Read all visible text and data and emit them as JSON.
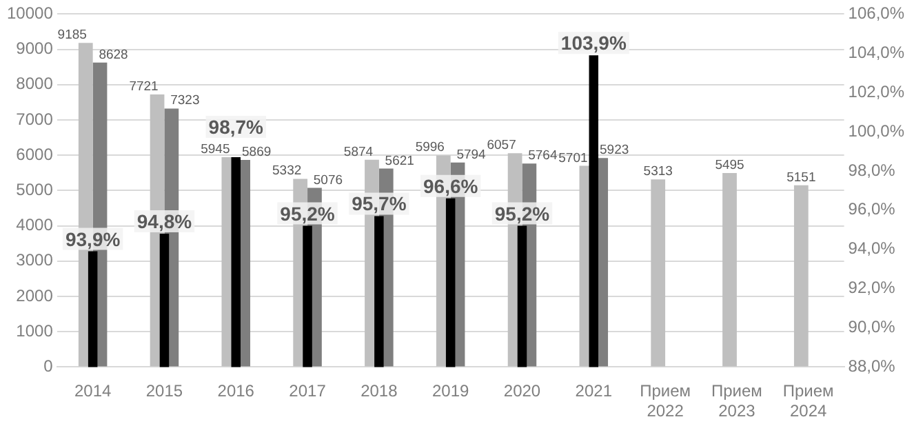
{
  "chart_data": {
    "type": "bar",
    "categories": [
      "2014",
      "2015",
      "2016",
      "2017",
      "2018",
      "2019",
      "2020",
      "2021",
      "Прием 2022",
      "Прием 2023",
      "Прием 2024"
    ],
    "series": [
      {
        "color": "#bfbfbf",
        "values": [
          9185,
          7721,
          5945,
          5332,
          5874,
          5996,
          6057,
          5701,
          5313,
          5495,
          5151
        ],
        "value_labels": [
          "9185",
          "7721",
          "5945",
          "5332",
          "5874",
          "5996",
          "6057",
          "5701",
          "5313",
          "5495",
          "5151"
        ]
      },
      {
        "color": "#7f7f7f",
        "values": [
          8628,
          7323,
          5869,
          5076,
          5621,
          5794,
          5764,
          5923,
          null,
          null,
          null
        ],
        "value_labels": [
          "8628",
          "7323",
          "5869",
          "5076",
          "5621",
          "5794",
          "5764",
          "5923",
          null,
          null,
          null
        ]
      },
      {
        "color": "#000000",
        "axis": "y2",
        "values": [
          93.9,
          94.8,
          98.7,
          95.2,
          95.7,
          96.6,
          95.2,
          103.9,
          null,
          null,
          null
        ],
        "value_labels": [
          "93,9%",
          "94,8%",
          "98,7%",
          "95,2%",
          "95,7%",
          "96,6%",
          "95,2%",
          "103,9%",
          null,
          null,
          null
        ]
      }
    ],
    "ylim": [
      0,
      10000
    ],
    "yticks": [
      0,
      1000,
      2000,
      3000,
      4000,
      5000,
      6000,
      7000,
      8000,
      9000,
      10000
    ],
    "y2lim": [
      88,
      106
    ],
    "y2ticks": [
      {
        "value": 88,
        "label": "88,0%"
      },
      {
        "value": 90,
        "label": "90,0%"
      },
      {
        "value": 92,
        "label": "92,0%"
      },
      {
        "value": 94,
        "label": "94,0%"
      },
      {
        "value": 96,
        "label": "96,0%"
      },
      {
        "value": 98,
        "label": "98,0%"
      },
      {
        "value": 100,
        "label": "100,0%"
      },
      {
        "value": 102,
        "label": "102,0%"
      },
      {
        "value": 104,
        "label": "104,0%"
      },
      {
        "value": 106,
        "label": "106,0%"
      }
    ],
    "grid": "y",
    "legend": false
  }
}
